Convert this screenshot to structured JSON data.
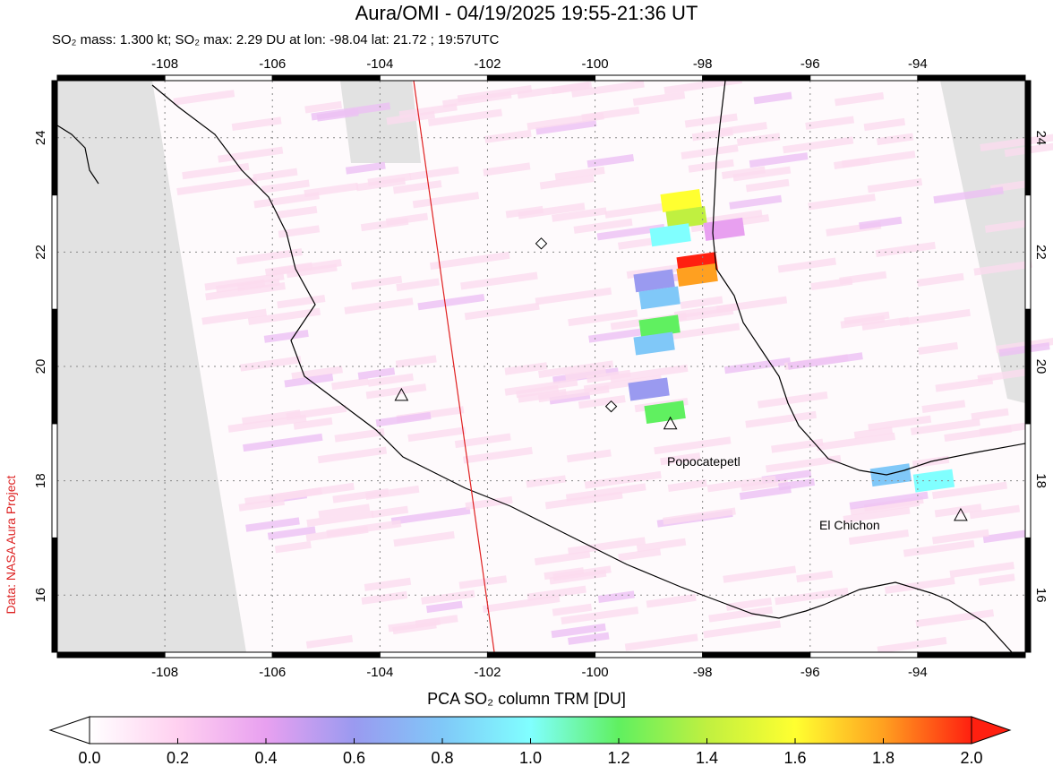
{
  "header": {
    "title": "Aura/OMI - 04/19/2025 19:55-21:36 UT",
    "subtitle": "SO₂ mass: 1.300 kt; SO₂ max: 2.29 DU at lon: -98.04 lat: 21.72 ; 19:57UTC"
  },
  "credit": "Data: NASA Aura Project",
  "map": {
    "lon_range": [
      -110,
      -92
    ],
    "lat_range": [
      15,
      25
    ],
    "lon_ticks": [
      "-108",
      "-106",
      "-104",
      "-102",
      "-100",
      "-98",
      "-96",
      "-94"
    ],
    "lat_ticks": [
      "24",
      "22",
      "20",
      "18",
      "16"
    ],
    "volcanoes": [
      {
        "name": "Popocatepetl",
        "lon": -98.6,
        "lat": 19.0
      },
      {
        "name": "El Chichon",
        "lon": -93.2,
        "lat": 17.4
      }
    ],
    "other_volcano_markers": [
      {
        "lon": -103.6,
        "lat": 19.5
      }
    ],
    "diamond_markers": [
      {
        "lon": -101.0,
        "lat": 22.15
      },
      {
        "lon": -99.7,
        "lat": 19.3
      }
    ],
    "swath_edge_color": "#e02020",
    "plume_cells": [
      {
        "lon": -98.4,
        "lat": 22.9,
        "v": 1.7
      },
      {
        "lon": -98.3,
        "lat": 22.6,
        "v": 1.4
      },
      {
        "lon": -98.6,
        "lat": 22.3,
        "v": 1.0
      },
      {
        "lon": -98.1,
        "lat": 21.8,
        "v": 2.0
      },
      {
        "lon": -98.1,
        "lat": 21.6,
        "v": 1.9
      },
      {
        "lon": -98.9,
        "lat": 21.5,
        "v": 0.7
      },
      {
        "lon": -98.8,
        "lat": 21.2,
        "v": 0.9
      },
      {
        "lon": -98.8,
        "lat": 20.7,
        "v": 1.3
      },
      {
        "lon": -98.9,
        "lat": 20.4,
        "v": 0.9
      },
      {
        "lon": -99.0,
        "lat": 19.6,
        "v": 0.7
      },
      {
        "lon": -98.7,
        "lat": 19.2,
        "v": 1.3
      },
      {
        "lon": -94.5,
        "lat": 18.1,
        "v": 0.9
      },
      {
        "lon": -93.7,
        "lat": 18.0,
        "v": 1.0
      },
      {
        "lon": -97.6,
        "lat": 22.4,
        "v": 0.5
      }
    ]
  },
  "colorbar": {
    "label": "PCA SO₂ column TRM [DU]",
    "ticks": [
      "0.0",
      "0.2",
      "0.4",
      "0.6",
      "0.8",
      "1.0",
      "1.2",
      "1.4",
      "1.6",
      "1.8",
      "2.0"
    ],
    "min": 0,
    "max": 2,
    "colors": [
      "#ffffff",
      "#ffd0f0",
      "#e8a0f0",
      "#9a9af0",
      "#80c8f8",
      "#80ffff",
      "#60f060",
      "#c0f040",
      "#ffff30",
      "#ffa020",
      "#ff2010"
    ]
  }
}
